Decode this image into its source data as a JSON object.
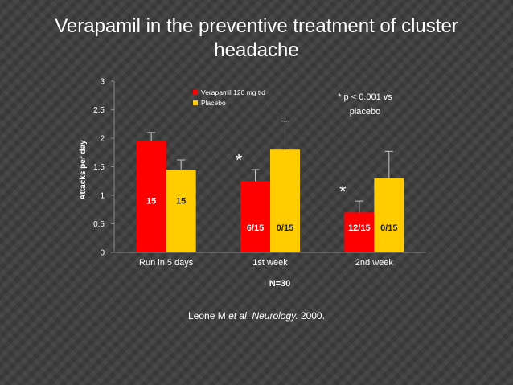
{
  "slide": {
    "title": "Verapamil in the preventive treatment of cluster headache"
  },
  "chart_data": {
    "type": "bar",
    "categories": [
      "Run in 5 days",
      "1st week",
      "2nd week"
    ],
    "series": [
      {
        "name": "Verapamil 120 mg tid",
        "color": "#ff0000",
        "values": [
          1.95,
          1.25,
          0.7
        ],
        "error_upper": [
          2.1,
          1.45,
          0.9
        ],
        "data_labels": [
          "15",
          "6/15",
          "12/15"
        ],
        "label_color": "#ffffff"
      },
      {
        "name": "Placebo",
        "color": "#ffcc00",
        "values": [
          1.45,
          1.8,
          1.3
        ],
        "error_upper": [
          1.62,
          2.3,
          1.77
        ],
        "data_labels": [
          "15",
          "0/15",
          "0/15"
        ],
        "label_color": "#222222"
      }
    ],
    "ylabel": "Attacks per day",
    "xlabel": "N=30",
    "ylim": [
      0,
      3
    ],
    "yticks": [
      "0",
      "0.5",
      "1",
      "1.5",
      "2",
      "2.5",
      "3"
    ],
    "significance": [
      "",
      "*",
      "*"
    ],
    "annotation": [
      "* p < 0.001 vs",
      "placebo"
    ],
    "legend_position": "top-center"
  },
  "citation": {
    "author": "Leone M ",
    "etal": "et al",
    "dot": ". ",
    "journal": "Neurology.",
    "year": " 2000."
  }
}
